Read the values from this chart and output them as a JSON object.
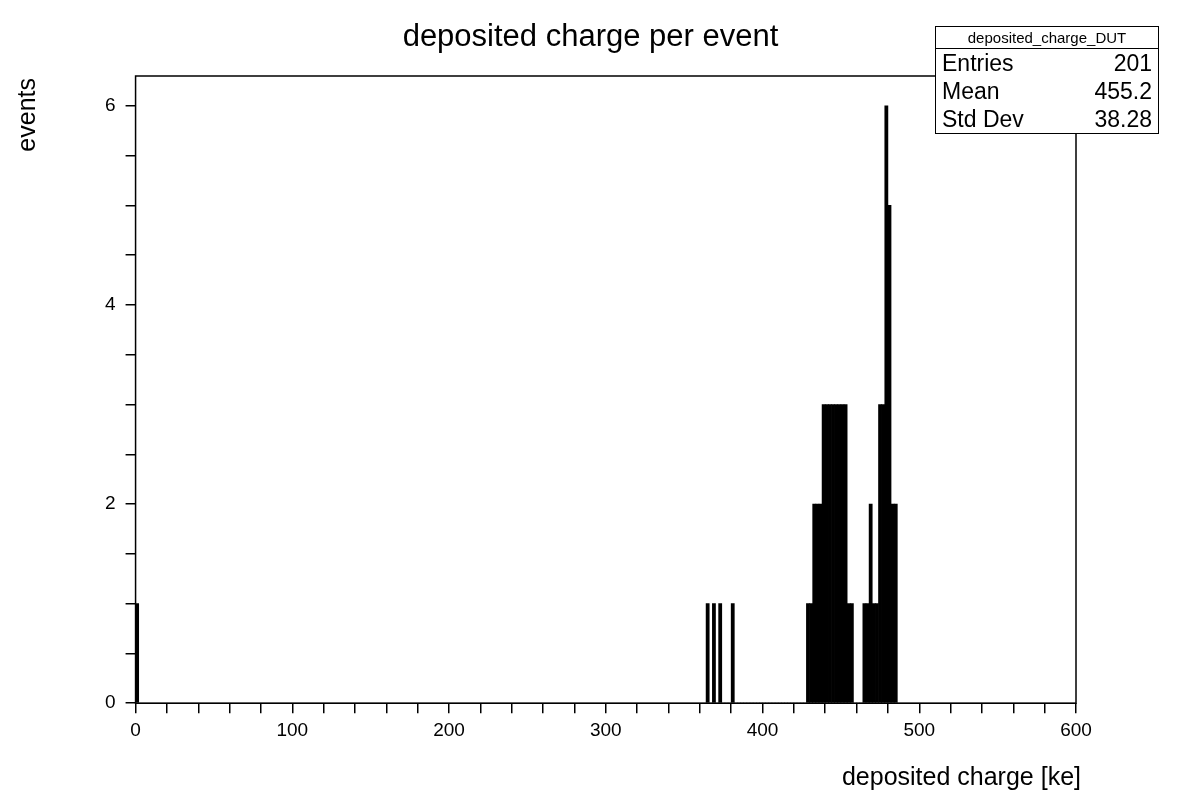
{
  "chart_data": {
    "type": "histogram",
    "title": "deposited charge per event",
    "xlabel": "deposited charge [ke]",
    "ylabel": "events",
    "bins": [
      0,
      2,
      364,
      366,
      368,
      370,
      372,
      374,
      376,
      378,
      380,
      382,
      384,
      386,
      388,
      390,
      392,
      394,
      396,
      398,
      400,
      402,
      404,
      406,
      408,
      410,
      412,
      414,
      416,
      418,
      420,
      422,
      424,
      426,
      428,
      430,
      432,
      434,
      436,
      438,
      440,
      442,
      444,
      446,
      448,
      450,
      452,
      454,
      456,
      458,
      460,
      462,
      464,
      466,
      468,
      470,
      472,
      474,
      476,
      478,
      480,
      482,
      484,
      486,
      600
    ],
    "values": [
      1,
      0,
      1,
      0,
      1,
      0,
      1,
      0,
      0,
      0,
      1,
      0,
      0,
      0,
      0,
      0,
      0,
      0,
      0,
      0,
      0,
      0,
      0,
      0,
      0,
      0,
      0,
      0,
      0,
      0,
      0,
      0,
      0,
      0,
      1,
      1,
      2,
      2,
      2,
      3,
      3,
      3,
      3,
      3,
      3,
      3,
      3,
      1,
      1,
      0,
      0,
      0,
      1,
      1,
      2,
      1,
      1,
      3,
      3,
      6,
      5,
      2,
      2,
      0
    ],
    "color": "#000000",
    "xlim": [
      0,
      600
    ],
    "ylim": [
      0,
      6.3
    ],
    "xticks": [
      0,
      {
        "value": 20,
        "label": null
      },
      {
        "value": 40,
        "label": null
      },
      {
        "value": 60,
        "label": null
      },
      {
        "value": 80,
        "label": null
      },
      100,
      {
        "value": 120,
        "label": null
      },
      {
        "value": 140,
        "label": null
      },
      {
        "value": 160,
        "label": null
      },
      {
        "value": 180,
        "label": null
      },
      200,
      {
        "value": 220,
        "label": null
      },
      {
        "value": 240,
        "label": null
      },
      {
        "value": 260,
        "label": null
      },
      {
        "value": 280,
        "label": null
      },
      300,
      {
        "value": 320,
        "label": null
      },
      {
        "value": 340,
        "label": null
      },
      {
        "value": 360,
        "label": null
      },
      {
        "value": 380,
        "label": null
      },
      400,
      {
        "value": 420,
        "label": null
      },
      {
        "value": 440,
        "label": null
      },
      {
        "value": 460,
        "label": null
      },
      {
        "value": 480,
        "label": null
      },
      500,
      {
        "value": 520,
        "label": null
      },
      {
        "value": 540,
        "label": null
      },
      {
        "value": 560,
        "label": null
      },
      {
        "value": 580,
        "label": null
      },
      600
    ],
    "yticks": [
      0,
      {
        "value": 0.5,
        "label": null
      },
      {
        "value": 1,
        "label": null
      },
      {
        "value": 1.5,
        "label": null
      },
      2,
      {
        "value": 2.5,
        "label": null
      },
      {
        "value": 3,
        "label": null
      },
      {
        "value": 3.5,
        "label": null
      },
      4,
      {
        "value": 4.5,
        "label": null
      },
      {
        "value": 5,
        "label": null
      },
      {
        "value": 5.5,
        "label": null
      },
      6
    ],
    "annotations": [
      "deposited_charge_DUT",
      "Entries",
      "201",
      "Mean",
      "455.2",
      "Std Dev",
      "38.28"
    ],
    "grid": false,
    "legend": false
  }
}
